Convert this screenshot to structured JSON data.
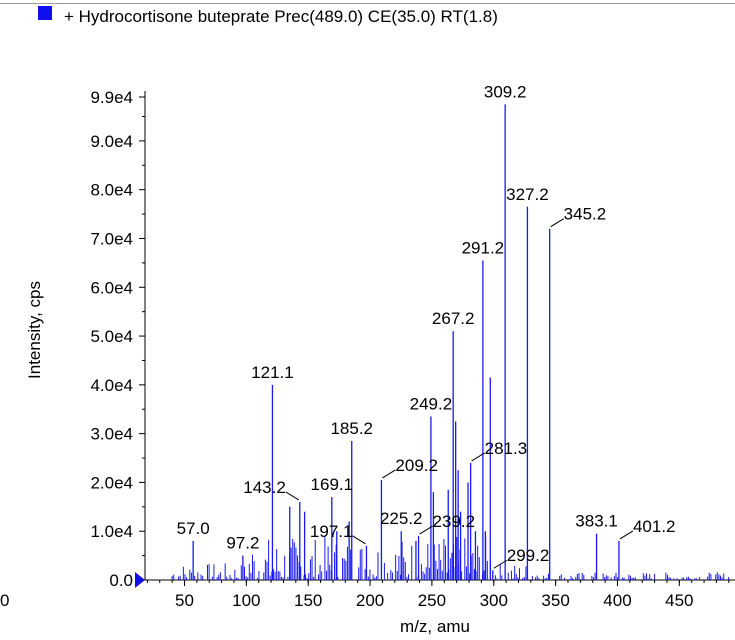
{
  "legend": {
    "label": "+ Hydrocortisone buteprate Prec(489.0) CE(35.0) RT(1.8)",
    "color": "#1010ee"
  },
  "colors": {
    "peak": "#1a1aee",
    "axis": "#000000",
    "marker": "#1010ee"
  },
  "chart_data": {
    "type": "bar",
    "xlabel": "m/z, amu",
    "ylabel": "Intensity, cps",
    "xlim": [
      10,
      495
    ],
    "ylim": [
      0,
      99000
    ],
    "x_ticks": [
      50,
      100,
      150,
      200,
      250,
      300,
      350,
      400,
      450
    ],
    "x_tick_labels": [
      "50",
      "100",
      "150",
      "200",
      "250",
      "300",
      "350",
      "400",
      "450"
    ],
    "x_edge_label": "0",
    "y_ticks": [
      0,
      10000,
      20000,
      30000,
      40000,
      50000,
      60000,
      70000,
      80000,
      90000,
      99000
    ],
    "y_tick_labels": [
      "0.0",
      "1.0e4",
      "2.0e4",
      "3.0e4",
      "4.0e4",
      "5.0e4",
      "6.0e4",
      "7.0e4",
      "8.0e4",
      "9.0e4",
      "9.9e4"
    ],
    "peaks": [
      {
        "mz": 57.0,
        "intensity": 8000
      },
      {
        "mz": 97.2,
        "intensity": 5000
      },
      {
        "mz": 121.1,
        "intensity": 40000
      },
      {
        "mz": 135.1,
        "intensity": 15000
      },
      {
        "mz": 143.2,
        "intensity": 16000
      },
      {
        "mz": 147.1,
        "intensity": 14000
      },
      {
        "mz": 169.1,
        "intensity": 17000
      },
      {
        "mz": 173.1,
        "intensity": 10000
      },
      {
        "mz": 183.1,
        "intensity": 12000
      },
      {
        "mz": 185.2,
        "intensity": 28500
      },
      {
        "mz": 197.1,
        "intensity": 7000
      },
      {
        "mz": 209.2,
        "intensity": 20500
      },
      {
        "mz": 225.2,
        "intensity": 10000
      },
      {
        "mz": 237.1,
        "intensity": 8000
      },
      {
        "mz": 239.2,
        "intensity": 9000
      },
      {
        "mz": 249.2,
        "intensity": 33500
      },
      {
        "mz": 251.2,
        "intensity": 18000
      },
      {
        "mz": 263.2,
        "intensity": 18500
      },
      {
        "mz": 267.2,
        "intensity": 51000
      },
      {
        "mz": 269.2,
        "intensity": 32500
      },
      {
        "mz": 271.2,
        "intensity": 22500
      },
      {
        "mz": 273.2,
        "intensity": 14000
      },
      {
        "mz": 279.2,
        "intensity": 20000
      },
      {
        "mz": 281.3,
        "intensity": 24000
      },
      {
        "mz": 285.2,
        "intensity": 10000
      },
      {
        "mz": 291.2,
        "intensity": 65500
      },
      {
        "mz": 293.2,
        "intensity": 10000
      },
      {
        "mz": 297.2,
        "intensity": 41500
      },
      {
        "mz": 299.2,
        "intensity": 2000
      },
      {
        "mz": 309.2,
        "intensity": 97500
      },
      {
        "mz": 327.2,
        "intensity": 76500
      },
      {
        "mz": 345.2,
        "intensity": 72000
      },
      {
        "mz": 383.1,
        "intensity": 9500
      },
      {
        "mz": 401.2,
        "intensity": 8000
      }
    ],
    "annotations": [
      {
        "text": "57.0",
        "mz": 57.0,
        "intensity": 8000,
        "pos": "above"
      },
      {
        "text": "97.2",
        "mz": 97.2,
        "intensity": 5000,
        "pos": "above"
      },
      {
        "text": "121.1",
        "mz": 121.1,
        "intensity": 40000,
        "pos": "above"
      },
      {
        "text": "143.2",
        "mz": 143.2,
        "intensity": 16000,
        "pos": "left-leader"
      },
      {
        "text": "169.1",
        "mz": 169.1,
        "intensity": 17000,
        "pos": "above"
      },
      {
        "text": "185.2",
        "mz": 185.2,
        "intensity": 28500,
        "pos": "above"
      },
      {
        "text": "197.1",
        "mz": 197.1,
        "intensity": 7000,
        "pos": "left-leader"
      },
      {
        "text": "209.2",
        "mz": 209.2,
        "intensity": 20500,
        "pos": "right-leader"
      },
      {
        "text": "225.2",
        "mz": 225.2,
        "intensity": 10000,
        "pos": "above"
      },
      {
        "text": "239.2",
        "mz": 239.2,
        "intensity": 9000,
        "pos": "right-leader"
      },
      {
        "text": "249.2",
        "mz": 249.2,
        "intensity": 33500,
        "pos": "above"
      },
      {
        "text": "267.2",
        "mz": 267.2,
        "intensity": 51000,
        "pos": "above"
      },
      {
        "text": "281.3",
        "mz": 281.3,
        "intensity": 24000,
        "pos": "right-leader"
      },
      {
        "text": "291.2",
        "mz": 291.2,
        "intensity": 65500,
        "pos": "above"
      },
      {
        "text": "299.2",
        "mz": 299.2,
        "intensity": 2000,
        "pos": "right-leader"
      },
      {
        "text": "309.2",
        "mz": 309.2,
        "intensity": 97500,
        "pos": "above"
      },
      {
        "text": "327.2",
        "mz": 327.2,
        "intensity": 76500,
        "pos": "above"
      },
      {
        "text": "345.2",
        "mz": 345.2,
        "intensity": 72000,
        "pos": "right-leader"
      },
      {
        "text": "383.1",
        "mz": 383.1,
        "intensity": 9500,
        "pos": "above"
      },
      {
        "text": "401.2",
        "mz": 401.2,
        "intensity": 8000,
        "pos": "right-leader"
      }
    ]
  }
}
